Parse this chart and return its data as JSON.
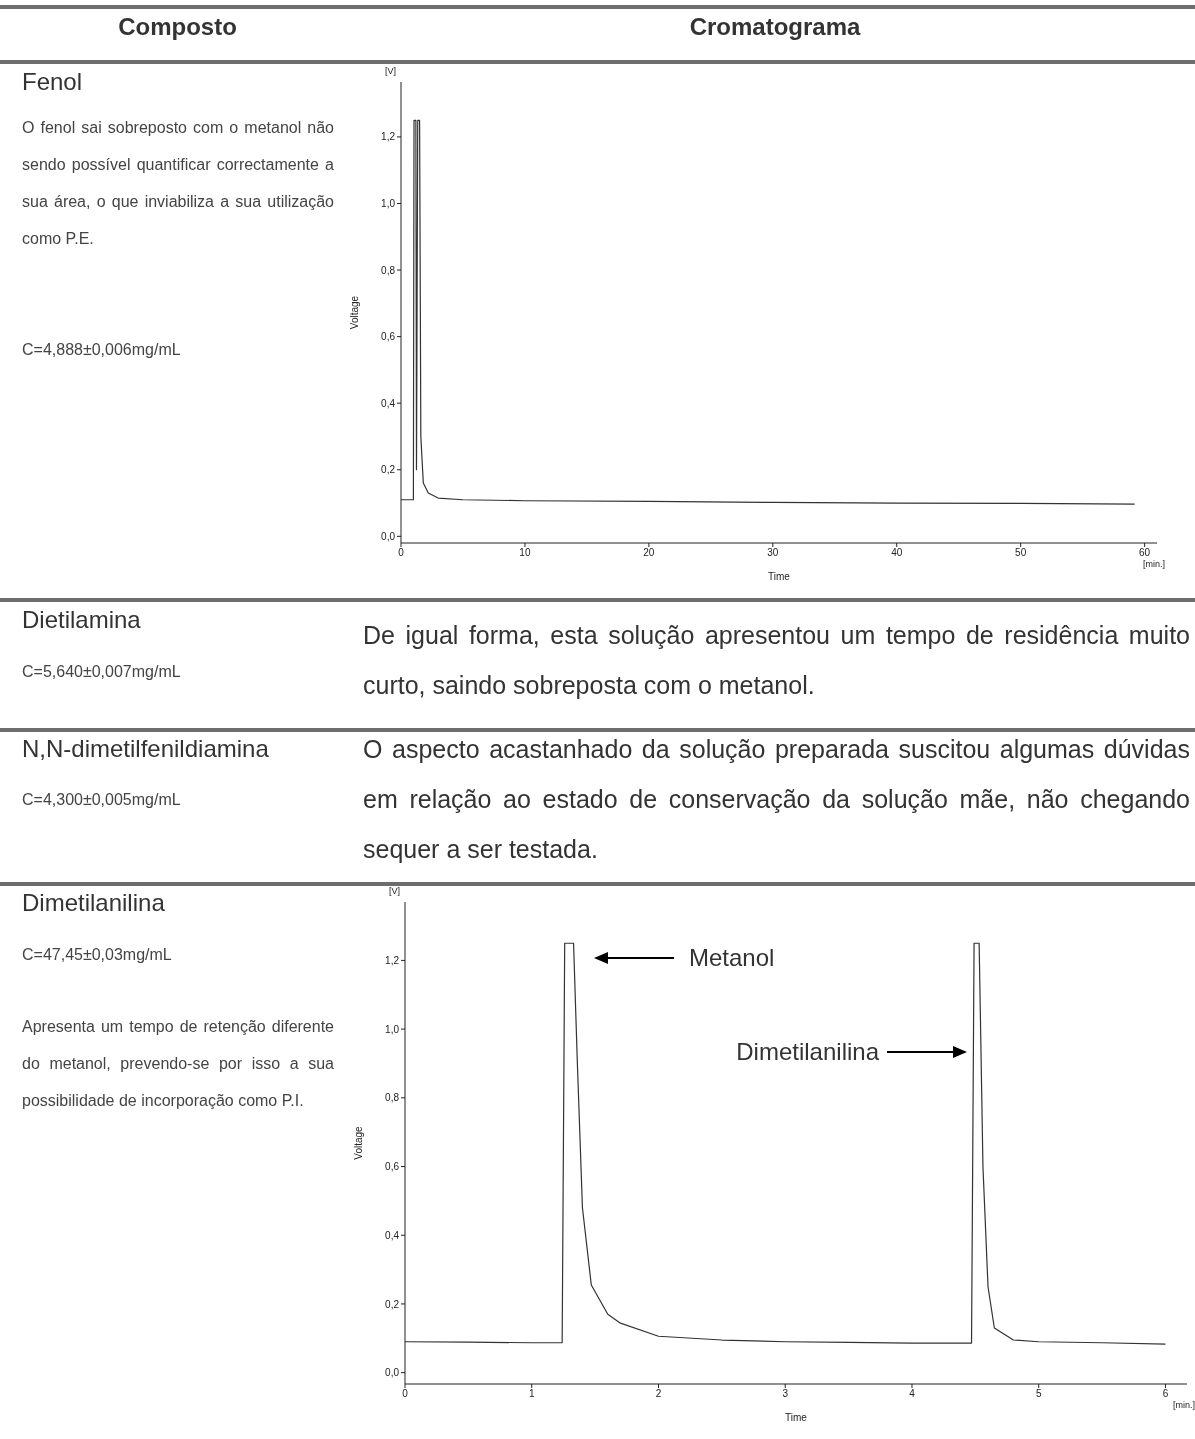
{
  "chart_data": [
    {
      "type": "line",
      "xlabel": "Time",
      "ylabel": "Voltage",
      "annotations": [
        "Composto",
        "Cromatograma",
        "Fenol",
        "O fenol sai sobreposto com o metanol não sendo possível quantificar correctamente a sua área, o que inviabiliza a sua utilização como P.E.",
        "C=4,888±0,006mg/mL",
        "[V]",
        "[min.]"
      ],
      "xlim": [
        0,
        61
      ],
      "xticks": [
        0,
        10,
        20,
        30,
        40,
        50,
        60
      ],
      "ylim": [
        -0.02,
        1.365
      ],
      "yticks": [
        {
          "value": 0,
          "label": "0,0"
        },
        {
          "value": 0.2,
          "label": "0,2"
        },
        {
          "value": 0.4,
          "label": "0,4"
        },
        {
          "value": 0.6,
          "label": "0,6"
        },
        {
          "value": 0.8,
          "label": "0,8"
        },
        {
          "value": 1.0,
          "label": "1,0"
        },
        {
          "value": 1.2,
          "label": "1,2"
        }
      ],
      "grid": false,
      "legend": false,
      "marker": "none",
      "line_style": "solid",
      "series": [
        {
          "color": "#333333",
          "x": [
            0,
            1.0,
            1.05,
            1.2,
            1.25,
            1.35,
            1.5,
            1.6,
            1.8,
            2.2,
            3,
            5,
            10,
            20,
            30,
            40,
            50,
            59.2
          ],
          "values": [
            0.11,
            0.11,
            1.25,
            1.25,
            0.2,
            1.25,
            1.25,
            0.3,
            0.16,
            0.13,
            0.115,
            0.11,
            0.107,
            0.105,
            0.102,
            0.1,
            0.099,
            0.097
          ]
        }
      ]
    },
    {
      "type": "other",
      "annotations": [
        "Dietilamina",
        "C=5,640±0,007mg/mL",
        "De igual forma, esta solução apresentou um tempo de residência muito curto, saindo sobreposta com o metanol.",
        "N,N-dimetilfenildiamina",
        "C=4,300±0,005mg/mL",
        "O aspecto acastanhado da solução preparada suscitou algumas dúvidas em relação ao estado de conservação da solução mãe, não chegando sequer a ser testada."
      ]
    },
    {
      "type": "line",
      "xlabel": "Time",
      "ylabel": "Voltage",
      "annotations": [
        "Dimetilanilina",
        "C=47,45±0,03mg/mL",
        "Apresenta um tempo de retenção diferente do metanol, prevendo-se por isso a sua possibilidade de incorporação como P.I.",
        "[V]",
        "[min.]",
        "Metanol",
        "Dimetilanilina"
      ],
      "xlim": [
        0,
        6.17
      ],
      "xticks": [
        0,
        1,
        2,
        3,
        4,
        5,
        6
      ],
      "ylim": [
        -0.033,
        1.37
      ],
      "yticks": [
        {
          "value": 0,
          "label": "0,0"
        },
        {
          "value": 0.2,
          "label": "0,2"
        },
        {
          "value": 0.4,
          "label": "0,4"
        },
        {
          "value": 0.6,
          "label": "0,6"
        },
        {
          "value": 0.8,
          "label": "0,8"
        },
        {
          "value": 1.0,
          "label": "1,0"
        },
        {
          "value": 1.2,
          "label": "1,2"
        }
      ],
      "grid": false,
      "legend": false,
      "marker": "none",
      "line_style": "solid",
      "series": [
        {
          "color": "#333333",
          "x": [
            0,
            0.5,
            1,
            1.24,
            1.26,
            1.33,
            1.36,
            1.4,
            1.47,
            1.6,
            1.7,
            2,
            2.5,
            3,
            3.5,
            4,
            4.47,
            4.49,
            4.53,
            4.56,
            4.6,
            4.65,
            4.8,
            5,
            5.5,
            6
          ],
          "values": [
            0.09,
            0.089,
            0.087,
            0.087,
            1.25,
            1.25,
            0.9,
            0.48,
            0.255,
            0.17,
            0.144,
            0.106,
            0.095,
            0.09,
            0.088,
            0.086,
            0.086,
            1.25,
            1.25,
            0.6,
            0.25,
            0.13,
            0.095,
            0.09,
            0.087,
            0.083
          ]
        }
      ]
    }
  ]
}
